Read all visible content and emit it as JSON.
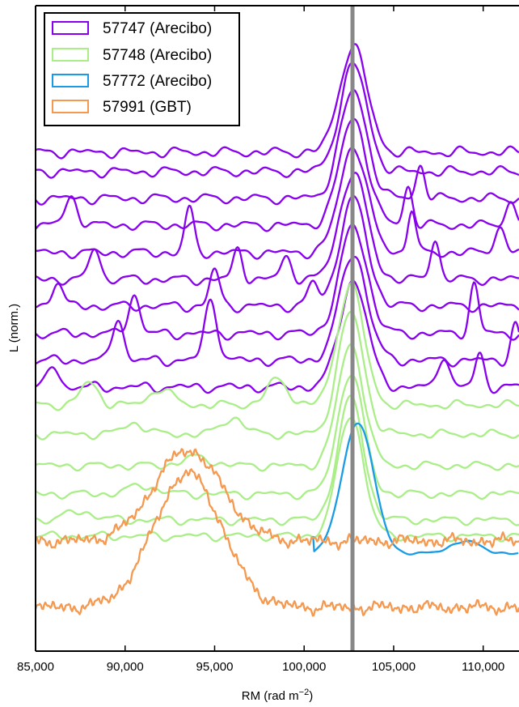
{
  "chart_data": {
    "type": "line",
    "title": "",
    "xlabel": "RM (rad m",
    "xlabel_sup": "−2",
    "xlabel_close": ")",
    "ylabel": "L (norm.)",
    "xlim": [
      85000,
      112000
    ],
    "grid": false,
    "legend_placement": "top-left",
    "x_ticks": [
      85000,
      90000,
      95000,
      100000,
      105000,
      110000
    ],
    "x_tick_labels": [
      "85,000",
      "90,000",
      "95,000",
      "100,000",
      "105,000",
      "110,000"
    ],
    "reference_rm": 102700,
    "reference_color": "#888888",
    "groups": [
      {
        "name": "57747 (Arecibo)",
        "color": "#8800ee",
        "x_range": [
          85000,
          112000
        ],
        "count": 10
      },
      {
        "name": "57748 (Arecibo)",
        "color": "#aaee88",
        "x_range": [
          85000,
          112000
        ],
        "count": 6
      },
      {
        "name": "57772 (Arecibo)",
        "color": "#1a9be6",
        "x_range": [
          100500,
          112000
        ],
        "count": 1
      },
      {
        "name": "57991 (GBT)",
        "color": "#f4994f",
        "x_range": [
          85000,
          112000
        ],
        "count": 2
      }
    ]
  }
}
